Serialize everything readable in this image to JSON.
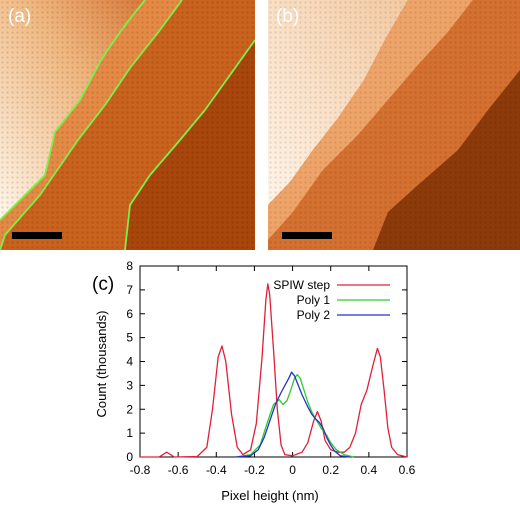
{
  "figure": {
    "panel_a_label": "(a)",
    "panel_b_label": "(b)",
    "panel_c_label": "(c)"
  },
  "colors": {
    "spiw": "#e0203a",
    "poly1": "#2ecc2e",
    "poly2": "#2233cc",
    "step_outline": "#7cf04a"
  },
  "chart_data": {
    "type": "line",
    "xlabel": "Pixel height (nm)",
    "ylabel": "Count (thousands)",
    "xlim": [
      -0.8,
      0.6
    ],
    "ylim": [
      0,
      8
    ],
    "xticks": [
      -0.8,
      -0.6,
      -0.4,
      -0.2,
      0,
      0.2,
      0.4,
      0.6
    ],
    "xtick_labels": [
      "-0.8",
      "-0.6",
      "-0.4",
      "-0.2",
      "0",
      "0.2",
      "0.4",
      "0.6"
    ],
    "yticks": [
      0,
      1,
      2,
      3,
      4,
      5,
      6,
      7,
      8
    ],
    "ytick_labels": [
      "0",
      "1",
      "2",
      "3",
      "4",
      "5",
      "6",
      "7",
      "8"
    ],
    "legend_position": "top-right",
    "series": [
      {
        "name": "SPIW step",
        "points": [
          [
            -0.8,
            0
          ],
          [
            -0.7,
            0
          ],
          [
            -0.66,
            0.2
          ],
          [
            -0.62,
            0
          ],
          [
            -0.5,
            0.02
          ],
          [
            -0.45,
            0.4
          ],
          [
            -0.42,
            2.0
          ],
          [
            -0.39,
            4.2
          ],
          [
            -0.37,
            4.65
          ],
          [
            -0.35,
            4.0
          ],
          [
            -0.32,
            1.8
          ],
          [
            -0.29,
            0.4
          ],
          [
            -0.26,
            0.1
          ],
          [
            -0.22,
            0.3
          ],
          [
            -0.19,
            1.4
          ],
          [
            -0.16,
            4.2
          ],
          [
            -0.14,
            6.6
          ],
          [
            -0.13,
            7.25
          ],
          [
            -0.12,
            6.8
          ],
          [
            -0.1,
            4.5
          ],
          [
            -0.08,
            2.0
          ],
          [
            -0.06,
            0.5
          ],
          [
            -0.04,
            0.1
          ],
          [
            0.0,
            0.05
          ],
          [
            0.05,
            0.2
          ],
          [
            0.08,
            0.6
          ],
          [
            0.11,
            1.5
          ],
          [
            0.13,
            1.9
          ],
          [
            0.15,
            1.5
          ],
          [
            0.17,
            0.7
          ],
          [
            0.2,
            0.3
          ],
          [
            0.24,
            0.2
          ],
          [
            0.27,
            0.2
          ],
          [
            0.3,
            0.4
          ],
          [
            0.33,
            1.0
          ],
          [
            0.36,
            2.2
          ],
          [
            0.39,
            2.8
          ],
          [
            0.42,
            3.8
          ],
          [
            0.445,
            4.55
          ],
          [
            0.46,
            4.2
          ],
          [
            0.48,
            2.8
          ],
          [
            0.5,
            1.2
          ],
          [
            0.52,
            0.4
          ],
          [
            0.55,
            0.1
          ],
          [
            0.6,
            0
          ]
        ]
      },
      {
        "name": "Poly 1",
        "points": [
          [
            -0.3,
            0
          ],
          [
            -0.22,
            0.1
          ],
          [
            -0.17,
            0.5
          ],
          [
            -0.13,
            1.5
          ],
          [
            -0.1,
            2.2
          ],
          [
            -0.07,
            2.4
          ],
          [
            -0.05,
            2.2
          ],
          [
            -0.03,
            2.35
          ],
          [
            -0.01,
            2.8
          ],
          [
            0.01,
            3.3
          ],
          [
            0.025,
            3.45
          ],
          [
            0.04,
            3.3
          ],
          [
            0.06,
            2.8
          ],
          [
            0.08,
            2.3
          ],
          [
            0.1,
            1.9
          ],
          [
            0.12,
            1.6
          ],
          [
            0.15,
            1.2
          ],
          [
            0.18,
            0.9
          ],
          [
            0.2,
            0.6
          ],
          [
            0.23,
            0.3
          ],
          [
            0.27,
            0.1
          ],
          [
            0.32,
            0
          ]
        ]
      },
      {
        "name": "Poly 2",
        "points": [
          [
            -0.3,
            0
          ],
          [
            -0.22,
            0.05
          ],
          [
            -0.18,
            0.3
          ],
          [
            -0.15,
            0.8
          ],
          [
            -0.12,
            1.5
          ],
          [
            -0.09,
            2.2
          ],
          [
            -0.06,
            2.7
          ],
          [
            -0.04,
            3.0
          ],
          [
            -0.02,
            3.3
          ],
          [
            -0.005,
            3.55
          ],
          [
            0.01,
            3.4
          ],
          [
            0.03,
            3.0
          ],
          [
            0.05,
            2.6
          ],
          [
            0.08,
            2.1
          ],
          [
            0.1,
            1.8
          ],
          [
            0.12,
            1.6
          ],
          [
            0.14,
            1.45
          ],
          [
            0.16,
            1.2
          ],
          [
            0.18,
            0.8
          ],
          [
            0.2,
            0.5
          ],
          [
            0.22,
            0.25
          ],
          [
            0.25,
            0.05
          ],
          [
            0.3,
            0
          ]
        ]
      }
    ]
  }
}
